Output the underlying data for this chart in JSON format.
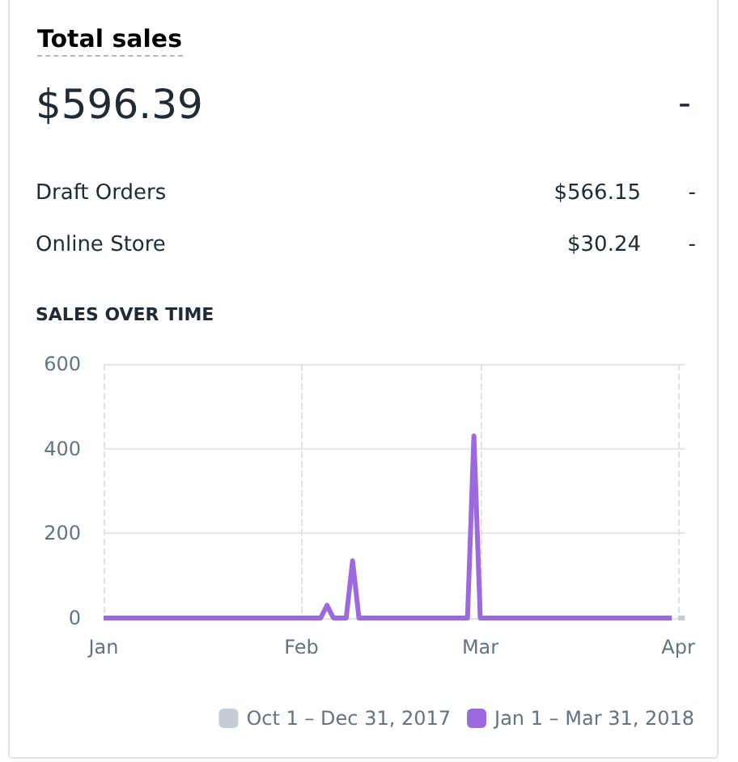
{
  "chart_data": [
    {
      "type": "other",
      "title": "Total sales",
      "annotations": [
        "$596.39",
        "-",
        "Draft Orders",
        "$566.15",
        "-",
        "Online Store",
        "$30.24",
        "-"
      ]
    },
    {
      "type": "line",
      "title": "SALES OVER TIME",
      "xlim": [
        "2018-01-01",
        "2018-04-02"
      ],
      "xticks": [
        {
          "value": "2018-01-01",
          "label": "Jan"
        },
        {
          "value": "2018-02-01",
          "label": "Feb"
        },
        {
          "value": "2018-03-01",
          "label": "Mar"
        },
        {
          "value": "2018-04-01",
          "label": "Apr"
        }
      ],
      "ylim": [
        0,
        600
      ],
      "yticks": [
        0,
        200,
        400,
        600
      ],
      "grid": true,
      "legend": "bottom right",
      "marker": "none",
      "line_style": "solid",
      "series": [
        {
          "name": "Oct 1 – Dec 31, 2017",
          "color": "#c4cdd5",
          "x": [
            "2018-04-01",
            "2018-04-02"
          ],
          "values": [
            0,
            0
          ]
        },
        {
          "name": "Jan 1 – Mar 31, 2018",
          "color": "#9c6ade",
          "x": [
            "2018-01-01",
            "2018-02-04",
            "2018-02-05",
            "2018-02-06",
            "2018-02-08",
            "2018-02-09",
            "2018-02-10",
            "2018-02-27",
            "2018-02-28",
            "2018-03-01",
            "2018-03-31"
          ],
          "values": [
            0,
            0,
            30,
            0,
            0,
            135,
            0,
            0,
            430,
            0,
            0
          ]
        }
      ]
    }
  ]
}
